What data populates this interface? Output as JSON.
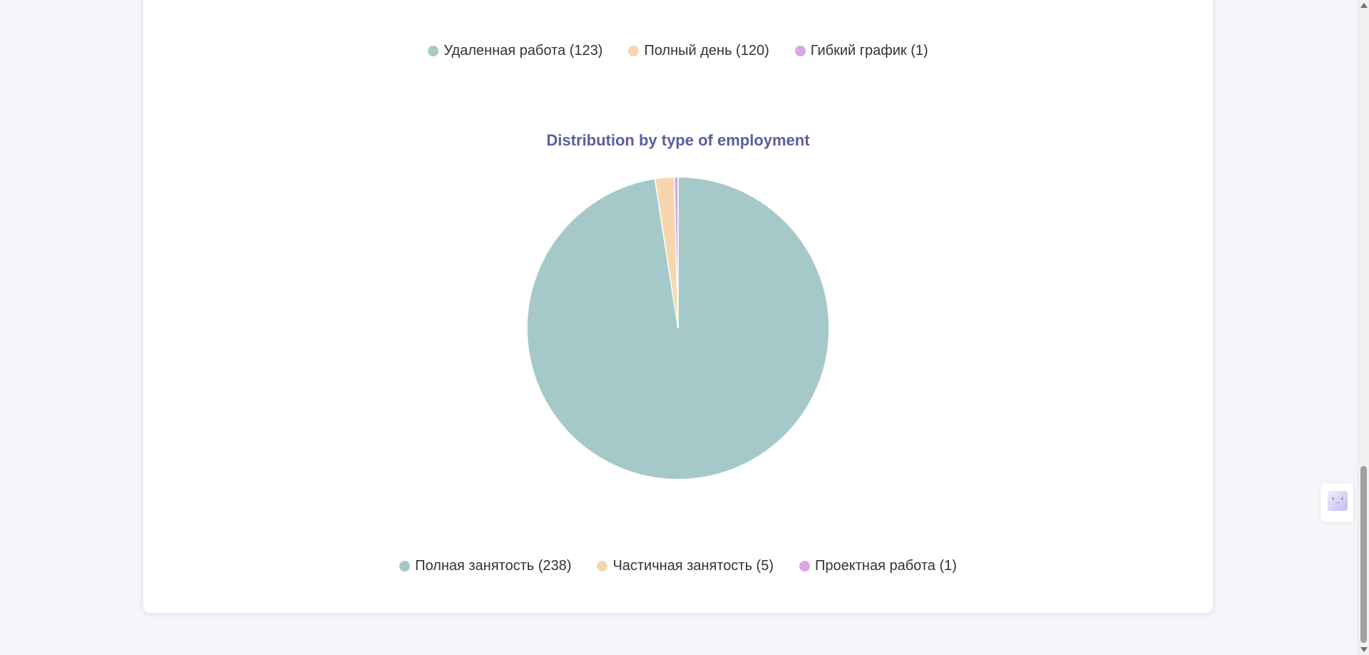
{
  "colors": {
    "teal": "#a5c9c8",
    "peach": "#f5d6ae",
    "lilac": "#d9a6e6",
    "title": "#5b5f9e"
  },
  "top_legend": {
    "items": [
      {
        "label": "Удаленная работа (123)",
        "color": "#a5c9c8"
      },
      {
        "label": "Полный день (120)",
        "color": "#f5d6ae"
      },
      {
        "label": "Гибкий график (1)",
        "color": "#d9a6e6"
      }
    ]
  },
  "chart_data": {
    "type": "pie",
    "title": "Distribution by type of employment",
    "categories": [
      "Полная занятость",
      "Частичная занятость",
      "Проектная работа"
    ],
    "values": [
      238,
      5,
      1
    ],
    "colors": [
      "#a5c9c8",
      "#f5d6ae",
      "#d9a6e6"
    ],
    "legend": {
      "position": "bottom",
      "items": [
        {
          "label": "Полная занятость (238)",
          "color": "#a5c9c8"
        },
        {
          "label": "Частичная занятость (5)",
          "color": "#f5d6ae"
        },
        {
          "label": "Проектная работа (1)",
          "color": "#d9a6e6"
        }
      ]
    }
  },
  "side_widget": {
    "icon": "face-emoticon-icon",
    "glyph": "›_‹"
  }
}
